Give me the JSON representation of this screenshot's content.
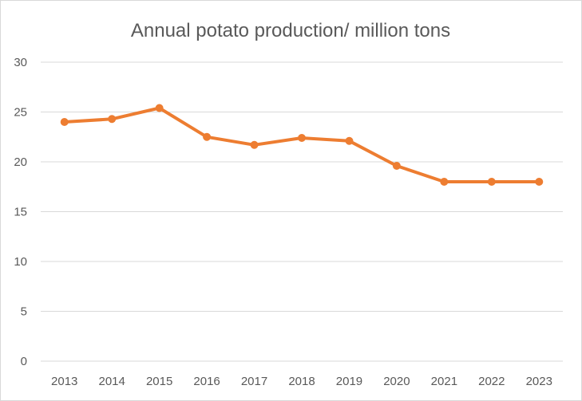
{
  "chart_data": {
    "type": "line",
    "title": "Annual potato production/ million tons",
    "xlabel": "",
    "ylabel": "",
    "categories": [
      "2013",
      "2014",
      "2015",
      "2016",
      "2017",
      "2018",
      "2019",
      "2020",
      "2021",
      "2022",
      "2023"
    ],
    "series": [
      {
        "name": "Annual potato production",
        "values": [
          24.0,
          24.3,
          25.4,
          22.5,
          21.7,
          22.4,
          22.1,
          19.6,
          18.0,
          18.0,
          18.0
        ]
      }
    ],
    "ylim": [
      0,
      30
    ],
    "yticks": [
      "0",
      "5",
      "10",
      "15",
      "20",
      "25",
      "30"
    ],
    "grid": true,
    "legend": "none",
    "colors": {
      "line": "#ed7d31",
      "grid": "#d9d9d9",
      "text": "#595959"
    }
  }
}
